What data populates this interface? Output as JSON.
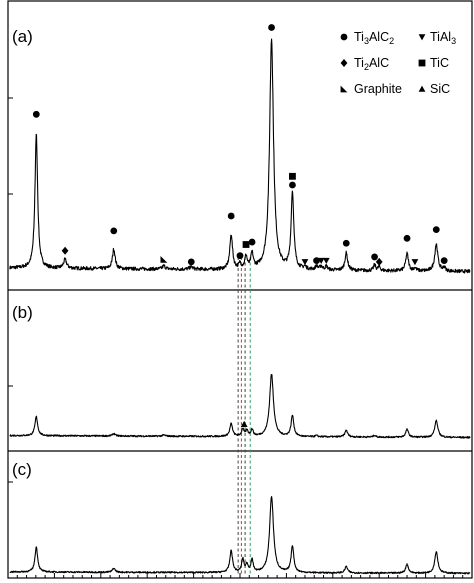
{
  "chart_data": {
    "type": "line",
    "layout": "three stacked panels",
    "x_range": [
      0,
      100
    ],
    "y_range": [
      0,
      100
    ],
    "tick_labels_visible": false,
    "panels": [
      {
        "label": "(a)",
        "baseline": 4,
        "noise": 0.7,
        "peaks": [
          {
            "x": 6.1,
            "h": 54,
            "w": 0.35
          },
          {
            "x": 12.3,
            "h": 3.5,
            "w": 0.4
          },
          {
            "x": 22.8,
            "h": 8,
            "w": 0.35
          },
          {
            "x": 33.6,
            "h": 1.3,
            "w": 0.4
          },
          {
            "x": 39.5,
            "h": 1,
            "w": 0.4
          },
          {
            "x": 48.1,
            "h": 14,
            "w": 0.35
          },
          {
            "x": 50.0,
            "h": 2,
            "w": 0.3
          },
          {
            "x": 51.3,
            "h": 5,
            "w": 0.3
          },
          {
            "x": 52.6,
            "h": 6,
            "w": 0.3
          },
          {
            "x": 56.8,
            "h": 93,
            "w": 0.5
          },
          {
            "x": 61.3,
            "h": 31,
            "w": 0.35
          },
          {
            "x": 64.0,
            "h": 1,
            "w": 0.3
          },
          {
            "x": 66.5,
            "h": 1.5,
            "w": 0.3
          },
          {
            "x": 67.5,
            "h": 1.5,
            "w": 0.3
          },
          {
            "x": 68.6,
            "h": 1.5,
            "w": 0.3
          },
          {
            "x": 72.9,
            "h": 7,
            "w": 0.35
          },
          {
            "x": 79.0,
            "h": 2.2,
            "w": 0.3
          },
          {
            "x": 80.0,
            "h": 1.5,
            "w": 0.3
          },
          {
            "x": 86.0,
            "h": 7,
            "w": 0.35
          },
          {
            "x": 87.7,
            "h": 1.2,
            "w": 0.3
          },
          {
            "x": 92.3,
            "h": 11,
            "w": 0.4
          },
          {
            "x": 94.0,
            "h": 1.5,
            "w": 0.3
          }
        ],
        "markers": [
          {
            "x": 6.1,
            "y": 66,
            "symbol": "circle"
          },
          {
            "x": 12.3,
            "y": 11,
            "symbol": "diamond"
          },
          {
            "x": 22.8,
            "y": 19,
            "symbol": "circle"
          },
          {
            "x": 33.6,
            "y": 7.5,
            "symbol": "corner"
          },
          {
            "x": 39.5,
            "y": 6.5,
            "symbol": "circle"
          },
          {
            "x": 48.1,
            "y": 25,
            "symbol": "circle"
          },
          {
            "x": 50.0,
            "y": 9,
            "symbol": "circle"
          },
          {
            "x": 51.3,
            "y": 13.5,
            "symbol": "square"
          },
          {
            "x": 52.6,
            "y": 14.5,
            "symbol": "circle"
          },
          {
            "x": 56.8,
            "y": 101,
            "symbol": "circle"
          },
          {
            "x": 61.3,
            "y": 41,
            "symbol": "square"
          },
          {
            "x": 61.3,
            "y": 37.5,
            "symbol": "circle"
          },
          {
            "x": 64.0,
            "y": 6.5,
            "symbol": "triangle-down"
          },
          {
            "x": 66.5,
            "y": 7,
            "symbol": "circle"
          },
          {
            "x": 67.5,
            "y": 7,
            "symbol": "triangle-down"
          },
          {
            "x": 68.6,
            "y": 7,
            "symbol": "triangle-down"
          },
          {
            "x": 72.9,
            "y": 14,
            "symbol": "circle"
          },
          {
            "x": 79.0,
            "y": 8.5,
            "symbol": "circle"
          },
          {
            "x": 80.0,
            "y": 6.5,
            "symbol": "diamond"
          },
          {
            "x": 86.0,
            "y": 16,
            "symbol": "circle"
          },
          {
            "x": 87.7,
            "y": 6.5,
            "symbol": "triangle-down"
          },
          {
            "x": 92.3,
            "y": 19.5,
            "symbol": "circle"
          },
          {
            "x": 94.0,
            "y": 7,
            "symbol": "circle"
          }
        ]
      },
      {
        "label": "(b)",
        "baseline": 9,
        "noise": 1.3,
        "peaks": [
          {
            "x": 6.1,
            "h": 32,
            "w": 0.35
          },
          {
            "x": 22.8,
            "h": 4,
            "w": 0.35
          },
          {
            "x": 33.6,
            "h": 2,
            "w": 0.4
          },
          {
            "x": 48.1,
            "h": 21,
            "w": 0.35
          },
          {
            "x": 50.6,
            "h": 12,
            "w": 0.3
          },
          {
            "x": 51.5,
            "h": 9,
            "w": 0.3
          },
          {
            "x": 52.6,
            "h": 11,
            "w": 0.3
          },
          {
            "x": 56.8,
            "h": 104,
            "w": 0.5
          },
          {
            "x": 61.3,
            "h": 35,
            "w": 0.35
          },
          {
            "x": 66.5,
            "h": 2,
            "w": 0.3
          },
          {
            "x": 72.9,
            "h": 11,
            "w": 0.35
          },
          {
            "x": 79.0,
            "h": 3,
            "w": 0.3
          },
          {
            "x": 86.0,
            "h": 13,
            "w": 0.35
          },
          {
            "x": 92.3,
            "h": 28,
            "w": 0.4
          }
        ],
        "markers": [
          {
            "x": 50.9,
            "y": 28,
            "symbol": "triangle-up"
          }
        ]
      },
      {
        "label": "(c)",
        "baseline": 5,
        "noise": 0.9,
        "peaks": [
          {
            "x": 6.1,
            "h": 31,
            "w": 0.35
          },
          {
            "x": 22.8,
            "h": 5,
            "w": 0.35
          },
          {
            "x": 48.1,
            "h": 27,
            "w": 0.35
          },
          {
            "x": 50.6,
            "h": 16,
            "w": 0.3
          },
          {
            "x": 51.5,
            "h": 9,
            "w": 0.3
          },
          {
            "x": 52.6,
            "h": 15,
            "w": 0.3
          },
          {
            "x": 56.8,
            "h": 94,
            "w": 0.5
          },
          {
            "x": 61.3,
            "h": 33,
            "w": 0.35
          },
          {
            "x": 72.9,
            "h": 8,
            "w": 0.35
          },
          {
            "x": 86.0,
            "h": 11,
            "w": 0.35
          },
          {
            "x": 92.3,
            "h": 27,
            "w": 0.4
          }
        ],
        "markers": []
      }
    ],
    "guide_lines": [
      {
        "x": 49.6,
        "color": "#444444"
      },
      {
        "x": 50.3,
        "color": "#cc3333"
      },
      {
        "x": 51.1,
        "color": "#444444"
      },
      {
        "x": 52.2,
        "color": "#2e9e6a"
      }
    ],
    "legend": {
      "placement": "top-right",
      "entries": [
        {
          "symbol": "circle",
          "label": "Ti",
          "sub": "3",
          "label2": "AlC",
          "sub2": "2"
        },
        {
          "symbol": "triangle-down",
          "label": "TiAl",
          "sub": "3",
          "label2": "",
          "sub2": ""
        },
        {
          "symbol": "diamond",
          "label": "Ti",
          "sub": "2",
          "label2": "AlC",
          "sub2": ""
        },
        {
          "symbol": "square",
          "label": "TiC",
          "sub": "",
          "label2": "",
          "sub2": ""
        },
        {
          "symbol": "corner",
          "label": "Graphite",
          "sub": "",
          "label2": "",
          "sub2": ""
        },
        {
          "symbol": "triangle-up",
          "label": "SiC",
          "sub": "",
          "label2": "",
          "sub2": ""
        }
      ]
    }
  }
}
